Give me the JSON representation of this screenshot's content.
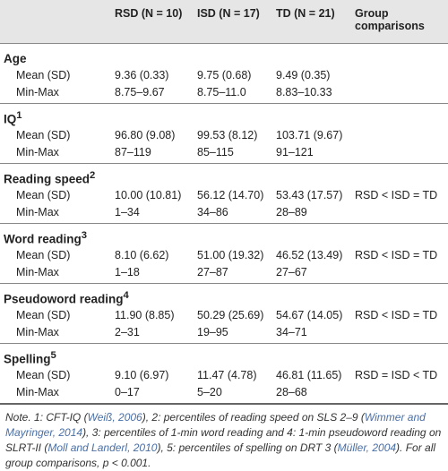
{
  "table": {
    "columns": [
      "RSD (N = 10)",
      "ISD (N = 17)",
      "TD (N = 21)",
      "Group comparisons"
    ],
    "sections": [
      {
        "title": "Age",
        "rows": [
          {
            "label": "Mean (SD)",
            "cells": [
              "9.36 (0.33)",
              "9.75 (0.68)",
              "9.49 (0.35)"
            ]
          },
          {
            "label": "Min-Max",
            "cells": [
              "8.75–9.67",
              "8.75–11.0",
              "8.83–10.33"
            ]
          }
        ]
      },
      {
        "title": "IQ",
        "sup": "1",
        "rows": [
          {
            "label": "Mean (SD)",
            "cells": [
              "96.80 (9.08)",
              "99.53 (8.12)",
              "103.71 (9.67)"
            ]
          },
          {
            "label": "Min-Max",
            "cells": [
              "87–119",
              "85–115",
              "91–121"
            ]
          }
        ]
      },
      {
        "title": "Reading speed",
        "sup": "2",
        "rows": [
          {
            "label": "Mean (SD)",
            "cells": [
              "10.00 (10.81)",
              "56.12 (14.70)",
              "53.43 (17.57)",
              "RSD < ISD = TD"
            ]
          },
          {
            "label": "Min-Max",
            "cells": [
              "1–34",
              "34–86",
              "28–89"
            ]
          }
        ]
      },
      {
        "title": "Word reading",
        "sup": "3",
        "rows": [
          {
            "label": "Mean (SD)",
            "cells": [
              "8.10 (6.62)",
              "51.00 (19.32)",
              "46.52 (13.49)",
              "RSD < ISD = TD"
            ]
          },
          {
            "label": "Min-Max",
            "cells": [
              "1–18",
              "27–87",
              "27–67"
            ]
          }
        ]
      },
      {
        "title": "Pseudoword reading",
        "sup": "4",
        "rows": [
          {
            "label": "Mean (SD)",
            "cells": [
              "11.90 (8.85)",
              "50.29 (25.69)",
              "54.67 (14.05)",
              "RSD < ISD = TD"
            ]
          },
          {
            "label": "Min-Max",
            "cells": [
              "2–31",
              "19–95",
              "34–71"
            ]
          }
        ]
      },
      {
        "title": "Spelling",
        "sup": "5",
        "rows": [
          {
            "label": "Mean (SD)",
            "cells": [
              "9.10 (6.97)",
              "11.47 (4.78)",
              "46.81 (11.65)",
              "RSD = ISD < TD"
            ]
          },
          {
            "label": "Min-Max",
            "cells": [
              "0–17",
              "5–20",
              "28–68"
            ]
          }
        ]
      }
    ]
  },
  "note": [
    {
      "text": "Note. 1: CFT-IQ ("
    },
    {
      "text": "Weiß, 2006",
      "style": "cite"
    },
    {
      "text": "), 2: percentiles of reading speed on SLS 2–9 ("
    },
    {
      "text": "Wimmer and Mayringer, 2014",
      "style": "cite"
    },
    {
      "text": "), 3: percentiles of 1-min word reading and 4: 1-min pseudoword reading on SLRT-II ("
    },
    {
      "text": "Moll and Landerl, 2010",
      "style": "cite"
    },
    {
      "text": "), 5: percentiles of spelling on DRT 3 ("
    },
    {
      "text": "Müller, 2004",
      "style": "cite"
    },
    {
      "text": "). For all group comparisons, p < 0.001."
    }
  ]
}
